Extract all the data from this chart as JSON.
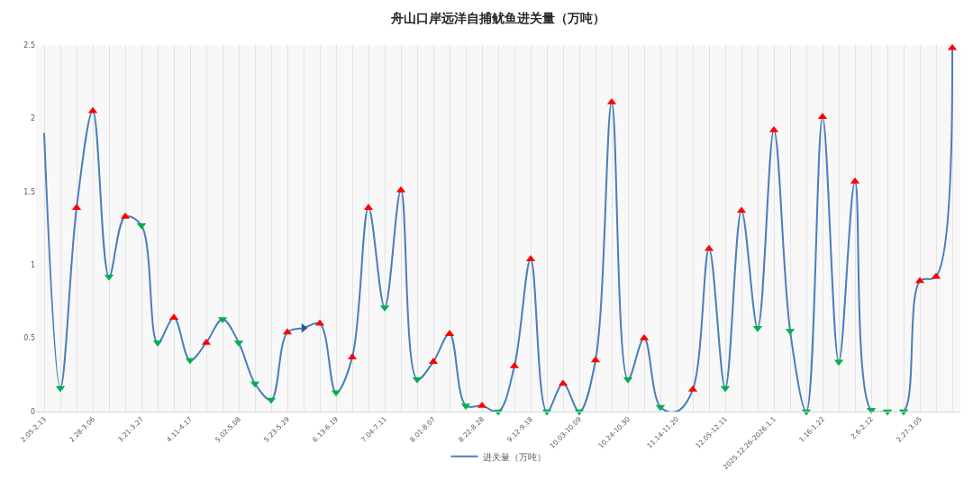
{
  "chart_data": {
    "type": "line",
    "title": "舟山口岸远洋自捕鱿鱼进关量（万吨）",
    "categories": [
      "2.05-2.13",
      null,
      null,
      "2.28-3.06",
      null,
      null,
      "3.21-3.27",
      null,
      null,
      "4.11-4.17",
      null,
      null,
      "5.02-5.08",
      null,
      null,
      "5.23-5.29",
      null,
      null,
      "6.13-6.19",
      null,
      null,
      "7.04-7.11",
      null,
      null,
      "8.01-8.07",
      null,
      null,
      "8.22-8.28",
      null,
      null,
      "9.12-9.18",
      null,
      null,
      "10.03-10.09",
      null,
      null,
      "10.24-10.30",
      null,
      null,
      "11.14-11.20",
      null,
      null,
      "12.05-12.11",
      null,
      null,
      "2025.12.26-2026.1.1",
      null,
      null,
      "1.16-1.22",
      null,
      null,
      "2.6-2.12",
      null,
      null,
      "2.27-3.05",
      null,
      null
    ],
    "series": [
      {
        "name": "进关量（万吨）",
        "color": "#4a7ebb",
        "values": [
          1.9,
          0.16,
          1.39,
          2.05,
          0.92,
          1.33,
          1.27,
          0.47,
          0.64,
          0.35,
          0.47,
          0.63,
          0.47,
          0.19,
          0.08,
          0.54,
          0.57,
          0.6,
          0.13,
          0.37,
          1.39,
          0.71,
          1.51,
          0.22,
          0.34,
          0.53,
          0.04,
          0.04,
          0,
          0.31,
          1.04,
          0,
          0.19,
          0,
          0.35,
          2.11,
          0.22,
          0.5,
          0.03,
          0,
          0.15,
          1.11,
          0.16,
          1.37,
          0.57,
          1.92,
          0.55,
          0,
          2.01,
          0.34,
          1.57,
          0.01,
          0,
          0,
          0.89,
          0.92,
          2.48
        ],
        "marker": [
          null,
          "triangle-down",
          "triangle-up",
          "triangle-up",
          "triangle-down",
          "triangle-up",
          "triangle-down",
          "triangle-down",
          "triangle-up",
          "triangle-down",
          "triangle-up",
          "triangle-down",
          "triangle-down",
          "triangle-down",
          "triangle-down",
          "triangle-up",
          "triangle-right",
          "triangle-up",
          "triangle-down",
          "triangle-up",
          "triangle-up",
          "triangle-down",
          "triangle-up",
          "triangle-down",
          "triangle-up",
          "triangle-up",
          "triangle-down",
          "triangle-up",
          "triangle-down",
          "triangle-up",
          "triangle-up",
          "triangle-down",
          "triangle-up",
          "triangle-down",
          "triangle-up",
          "triangle-up",
          "triangle-down",
          "triangle-up",
          "triangle-down",
          null,
          "triangle-up",
          "triangle-up",
          "triangle-down",
          "triangle-up",
          "triangle-down",
          "triangle-up",
          "triangle-down",
          "triangle-down",
          "triangle-up",
          "triangle-down",
          "triangle-up",
          "triangle-down",
          "triangle-down",
          "triangle-down",
          "triangle-up",
          "triangle-up",
          "triangle-up"
        ],
        "colors": [
          null,
          "#00b050",
          "#ff0000",
          "#ff0000",
          "#00b050",
          "#ff0000",
          "#00b050",
          "#00b050",
          "#ff0000",
          "#00b050",
          "#ff0000",
          "#00b050",
          "#00b050",
          "#00b050",
          "#00b050",
          "#ff0000",
          "#2f5597",
          "#ff0000",
          "#00b050",
          "#ff0000",
          "#ff0000",
          "#00b050",
          "#ff0000",
          "#00b050",
          "#ff0000",
          "#ff0000",
          "#00b050",
          "#ff0000",
          "#00b050",
          "#ff0000",
          "#ff0000",
          "#00b050",
          "#ff0000",
          "#00b050",
          "#ff0000",
          "#ff0000",
          "#00b050",
          "#ff0000",
          "#00b050",
          null,
          "#ff0000",
          "#ff0000",
          "#00b050",
          "#ff0000",
          "#00b050",
          "#ff0000",
          "#00b050",
          "#00b050",
          "#ff0000",
          "#00b050",
          "#ff0000",
          "#00b050",
          "#00b050",
          "#00b050",
          "#ff0000",
          "#ff0000",
          "#ff0000"
        ]
      }
    ],
    "ylim": [
      0,
      2.5
    ],
    "yticks": [
      0,
      0.5,
      1,
      1.5,
      2,
      2.5
    ],
    "grid": "x",
    "legend": "bottom",
    "line_style": "solid"
  }
}
